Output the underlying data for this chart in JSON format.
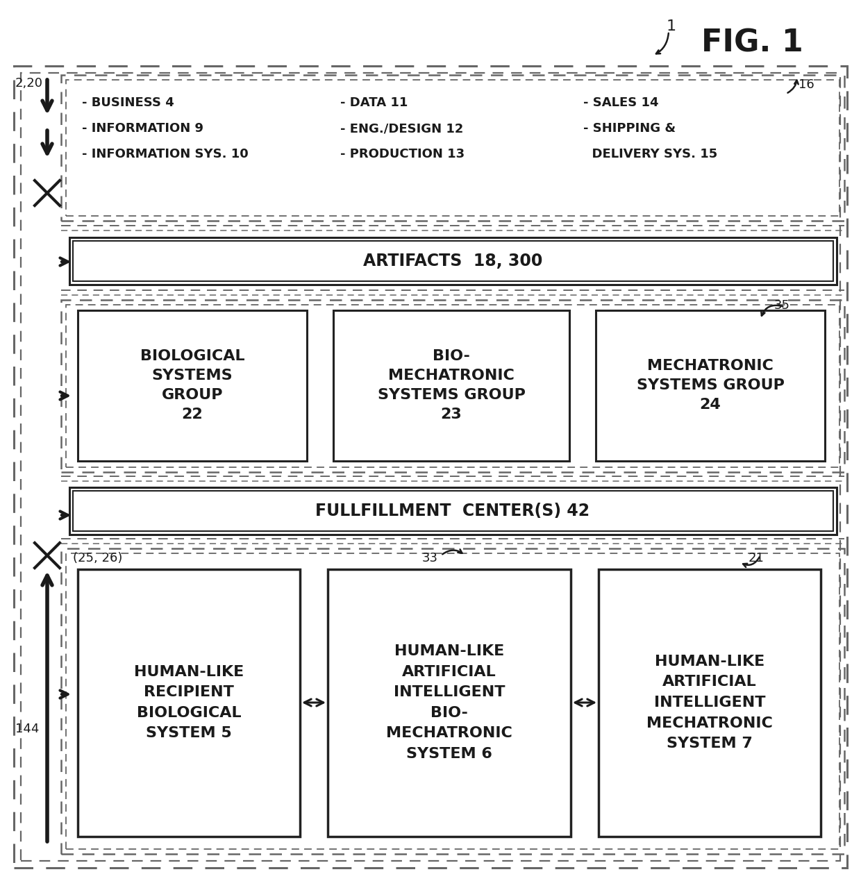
{
  "fig_title": "FIG. 1",
  "bg_color": "#ffffff",
  "text_color": "#1a1a1a",
  "dash_color": "#666666",
  "solid_color": "#222222",
  "enterprise_col1": [
    "- BUSINESS 4",
    "- INFORMATION 9",
    "- INFORMATION SYS. 10"
  ],
  "enterprise_col2": [
    "- DATA 11",
    "- ENG./DESIGN 12",
    "- PRODUCTION 13"
  ],
  "enterprise_col3_line1": "- SALES 14",
  "enterprise_col3_line2": "- SHIPPING &",
  "enterprise_col3_line3": "  DELIVERY SYS. 15",
  "artifacts_text": "ARTIFACTS  18, 300",
  "bio_sys_text": "BIOLOGICAL\nSYSTEMS\nGROUP\n22",
  "biomech_sys_text": "BIO-\nMECHATRONIC\nSYSTEMS GROUP\n23",
  "mech_sys_text": "MECHATRONIC\nSYSTEMS GROUP\n24",
  "fulfill_text": "FULLFILLMENT  CENTER(S) 42",
  "human_bio_text": "HUMAN-LIKE\nRECIPIENT\nBIOLOGICAL\nSYSTEM 5",
  "human_bio_mech_text": "HUMAN-LIKE\nARTIFICIAL\nINTELLIGENT\nBIO-\nMECHATRONIC\nSYSTEM 6",
  "human_mech_text": "HUMAN-LIKE\nARTIFICIAL\nINTELLIGENT\nMECHATRONIC\nSYSTEM 7",
  "label_220": "2,20",
  "label_16": "16",
  "label_35": "35",
  "label_25_26": "(25, 26)",
  "label_33": "33",
  "label_21": "21",
  "label_144": "144",
  "label_1": "1"
}
